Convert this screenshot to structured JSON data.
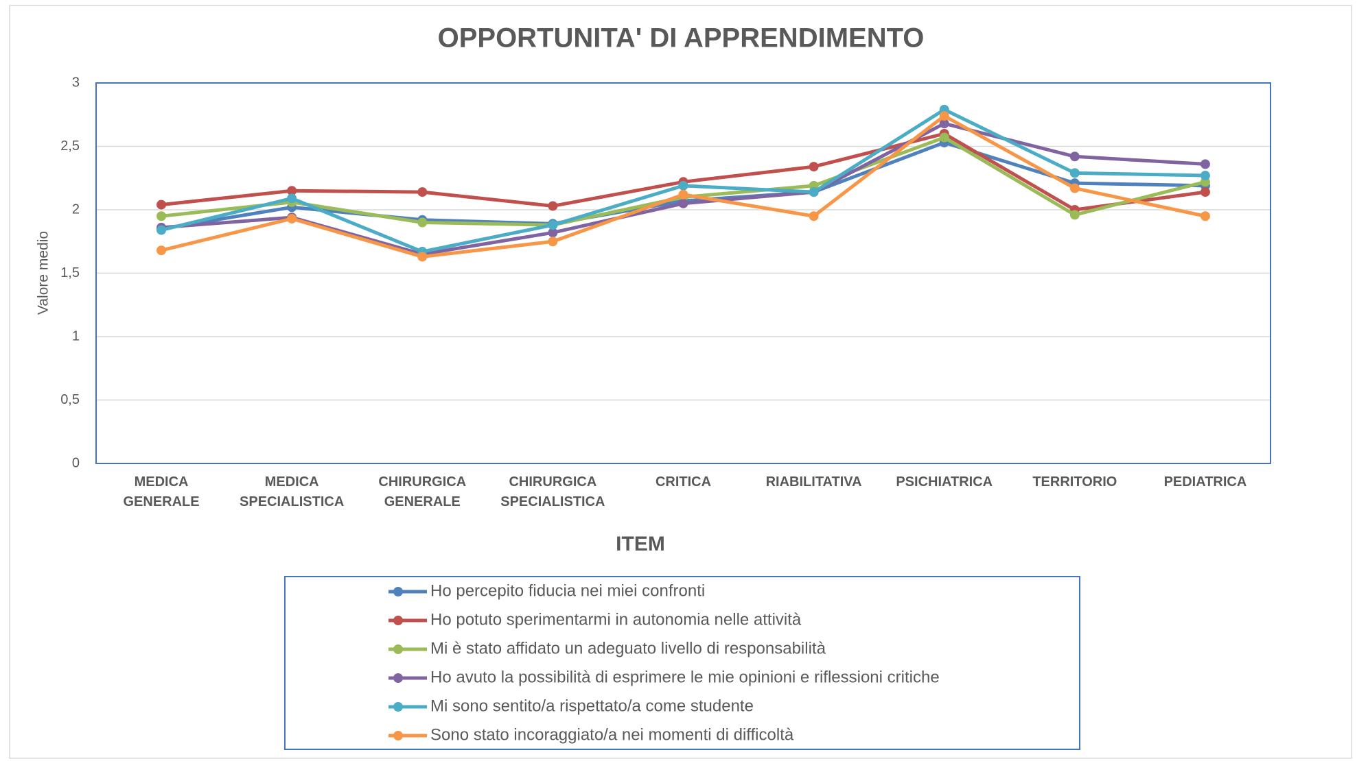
{
  "chart_data": {
    "type": "line",
    "title": "OPPORTUNITA' DI APPRENDIMENTO",
    "x_label": "ITEM",
    "y_label": "Valore medio",
    "categories": [
      "MEDICA GENERALE",
      "MEDICA SPECIALISTICA",
      "CHIRURGICA GENERALE",
      "CHIRURGICA SPECIALISTICA",
      "CRITICA",
      "RIABILITATIVA",
      "PSICHIATRICA",
      "TERRITORIO",
      "PEDIATRICA"
    ],
    "series": [
      {
        "name": "Ho percepito fiducia nei miei confronti",
        "color": "#4f81bd",
        "values": [
          1.85,
          2.02,
          1.92,
          1.89,
          2.07,
          2.14,
          2.53,
          2.21,
          2.19
        ]
      },
      {
        "name": "Ho potuto sperimentarmi in autonomia nelle attività",
        "color": "#c0504d",
        "values": [
          2.04,
          2.15,
          2.14,
          2.03,
          2.22,
          2.34,
          2.6,
          2.0,
          2.14
        ]
      },
      {
        "name": "Mi è stato affidato un adeguato livello di responsabilità",
        "color": "#9bbb59",
        "values": [
          1.95,
          2.06,
          1.9,
          1.88,
          2.1,
          2.19,
          2.57,
          1.96,
          2.22
        ]
      },
      {
        "name": "Ho avuto la possibilità di esprimere le mie opinioni e riflessioni critiche",
        "color": "#8064a2",
        "values": [
          1.86,
          1.94,
          1.65,
          1.82,
          2.05,
          2.14,
          2.68,
          2.42,
          2.36
        ]
      },
      {
        "name": "Mi sono sentito/a rispettato/a come studente",
        "color": "#4bacc6",
        "values": [
          1.84,
          2.09,
          1.67,
          1.88,
          2.19,
          2.14,
          2.79,
          2.29,
          2.27
        ]
      },
      {
        "name": "Sono stato incoraggiato/a nei momenti di difficoltà",
        "color": "#f79646",
        "values": [
          1.68,
          1.93,
          1.63,
          1.75,
          2.12,
          1.95,
          2.74,
          2.17,
          1.95
        ]
      }
    ],
    "ylim": [
      0,
      3
    ],
    "yticks": [
      0,
      {
        "value": 0.5,
        "label": "0,5"
      },
      1,
      {
        "value": 1.5,
        "label": "1,5"
      },
      2,
      {
        "value": 2.5,
        "label": "2,5"
      },
      3
    ],
    "grid": true,
    "legend": "bottom"
  }
}
